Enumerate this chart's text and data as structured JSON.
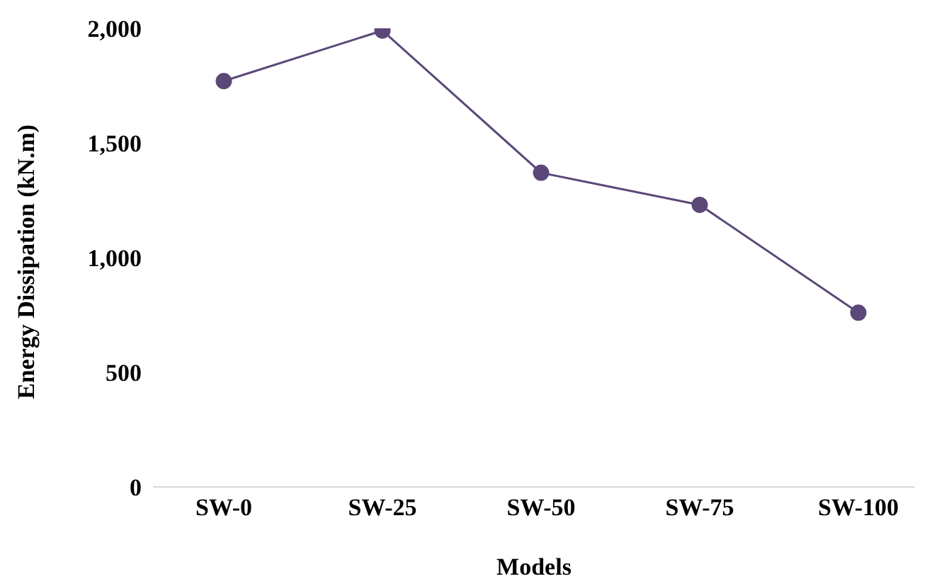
{
  "chart_data": {
    "type": "line",
    "xlabel": "Models",
    "ylabel": "Energy Dissipation (kN.m)",
    "categories": [
      "SW-0",
      "SW-25",
      "SW-50",
      "SW-75",
      "SW-100"
    ],
    "series": [
      {
        "color": "#5b4878",
        "values": [
          1770,
          1990,
          1370,
          1230,
          760
        ]
      }
    ],
    "ylim": [
      0,
      2000
    ],
    "yticks": [
      {
        "value": 0,
        "label": "0"
      },
      {
        "value": 500,
        "label": "500"
      },
      {
        "value": 1000,
        "label": "1,000"
      },
      {
        "value": 1500,
        "label": "1,500"
      },
      {
        "value": 2000,
        "label": "2,000"
      }
    ],
    "grid": false,
    "legend": false,
    "marker": "circle"
  }
}
